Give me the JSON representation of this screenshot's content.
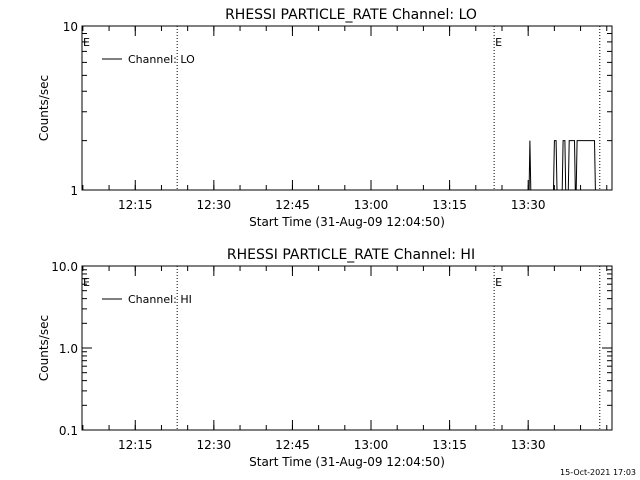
{
  "footer_timestamp": "15-Oct-2021 17:03",
  "chart_data": [
    {
      "type": "line",
      "title": "RHESSI PARTICLE_RATE Channel: LO",
      "xlabel": "Start Time (31-Aug-09 12:04:50)",
      "ylabel": "Counts/sec",
      "y_scale": "log",
      "ylim": [
        1,
        10
      ],
      "y_ticks": [
        "1",
        "10"
      ],
      "x_ticks": [
        "12:15",
        "12:30",
        "12:45",
        "13:00",
        "13:15",
        "13:30"
      ],
      "xlim": [
        "12:04:50",
        "13:46:00"
      ],
      "vertical_markers": [
        "12:23:00",
        "13:23:30",
        "13:43:40"
      ],
      "marker_labels": [
        {
          "text": "E",
          "at": "12:04:50"
        },
        {
          "text": "E",
          "at": "13:23:30"
        }
      ],
      "legend": {
        "entries": [
          "Channel: LO"
        ],
        "position": "top-left"
      },
      "series": [
        {
          "name": "Channel: LO",
          "x": [
            "13:30:10",
            "13:30:20",
            "13:30:30",
            "13:34:50",
            "13:35:00",
            "13:35:20",
            "13:35:30",
            "13:36:30",
            "13:36:40",
            "13:37:00",
            "13:37:10",
            "13:37:40",
            "13:37:50",
            "13:38:50",
            "13:39:00",
            "13:39:10",
            "13:39:20",
            "13:39:50",
            "13:40:00",
            "13:42:40",
            "13:42:50"
          ],
          "values": [
            1,
            2,
            1,
            1,
            2,
            2,
            1,
            1,
            2,
            2,
            1,
            1,
            2,
            2,
            1,
            1,
            2,
            2,
            2,
            2,
            1
          ]
        }
      ]
    },
    {
      "type": "line",
      "title": "RHESSI PARTICLE_RATE Channel: HI",
      "xlabel": "Start Time (31-Aug-09 12:04:50)",
      "ylabel": "Counts/sec",
      "y_scale": "log",
      "ylim": [
        0.1,
        10
      ],
      "y_ticks": [
        "0.1",
        "1.0",
        "10.0"
      ],
      "x_ticks": [
        "12:15",
        "12:30",
        "12:45",
        "13:00",
        "13:15",
        "13:30"
      ],
      "xlim": [
        "12:04:50",
        "13:46:00"
      ],
      "vertical_markers": [
        "12:23:00",
        "13:23:30",
        "13:43:40"
      ],
      "marker_labels": [
        {
          "text": "E",
          "at": "12:04:50"
        },
        {
          "text": "E",
          "at": "13:23:30"
        }
      ],
      "legend": {
        "entries": [
          "Channel: HI"
        ],
        "position": "top-left"
      },
      "series": [
        {
          "name": "Channel: HI",
          "x": [],
          "values": []
        }
      ]
    }
  ]
}
